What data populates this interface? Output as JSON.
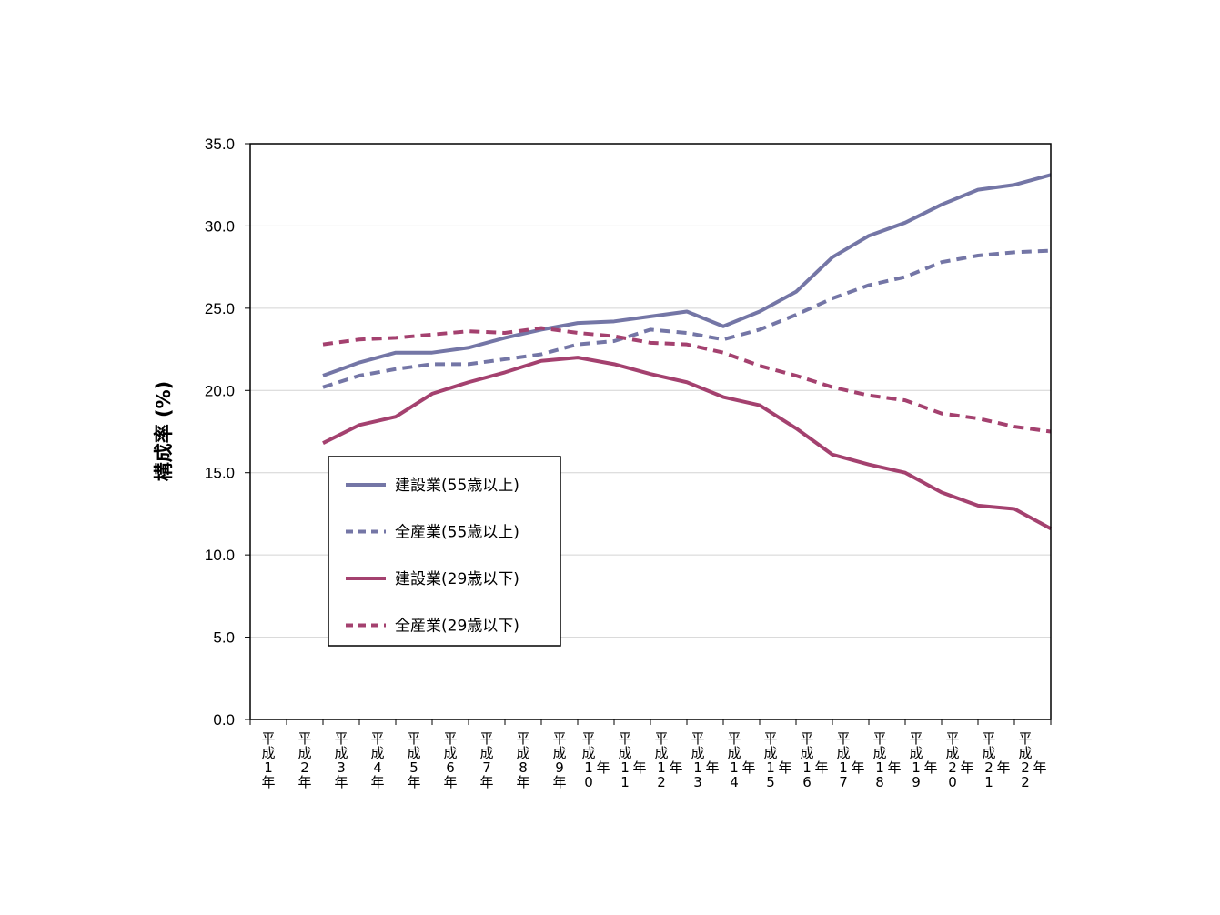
{
  "chart_data": {
    "type": "line",
    "title": "",
    "xlabel": "",
    "ylabel": "構成率 (%)",
    "ylim": [
      0,
      35
    ],
    "yticks": [
      "0.0",
      "5.0",
      "10.0",
      "15.0",
      "20.0",
      "25.0",
      "30.0",
      "35.0"
    ],
    "grid": true,
    "legend_position": "left-middle",
    "categories": [
      "平成1年",
      "平成2年",
      "平成3年",
      "平成4年",
      "平成5年",
      "平成6年",
      "平成7年",
      "平成8年",
      "平成9年",
      "平成10年",
      "平成11年",
      "平成12年",
      "平成13年",
      "平成14年",
      "平成15年",
      "平成16年",
      "平成17年",
      "平成18年",
      "平成19年",
      "平成20年",
      "平成21年",
      "平成22年"
    ],
    "series": [
      {
        "name": "建設業(55歳以上)",
        "color": "#7476A6",
        "dash": false,
        "values": [
          null,
          20.9,
          21.7,
          22.3,
          22.3,
          22.6,
          23.2,
          23.7,
          24.1,
          24.2,
          24.5,
          24.8,
          23.9,
          24.8,
          26.0,
          28.1,
          29.4,
          30.2,
          31.3,
          32.2,
          32.5,
          33.1
        ]
      },
      {
        "name": "全産業(55歳以上)",
        "color": "#7476A6",
        "dash": true,
        "values": [
          null,
          20.2,
          20.9,
          21.3,
          21.6,
          21.6,
          21.9,
          22.2,
          22.8,
          23.0,
          23.7,
          23.5,
          23.1,
          23.7,
          24.6,
          25.6,
          26.4,
          26.9,
          27.8,
          28.2,
          28.4,
          28.5
        ]
      },
      {
        "name": "建設業(29歳以下)",
        "color": "#A4416F",
        "dash": false,
        "values": [
          null,
          16.8,
          17.9,
          18.4,
          19.8,
          20.5,
          21.1,
          21.8,
          22.0,
          21.6,
          21.0,
          20.5,
          19.6,
          19.1,
          17.7,
          16.1,
          15.5,
          15.0,
          13.8,
          13.0,
          12.8,
          11.6
        ]
      },
      {
        "name": "全産業(29歳以下)",
        "color": "#A4416F",
        "dash": true,
        "values": [
          null,
          22.8,
          23.1,
          23.2,
          23.4,
          23.6,
          23.5,
          23.8,
          23.5,
          23.3,
          22.9,
          22.8,
          22.3,
          21.5,
          20.9,
          20.2,
          19.7,
          19.4,
          18.6,
          18.3,
          17.8,
          17.5
        ]
      }
    ]
  }
}
